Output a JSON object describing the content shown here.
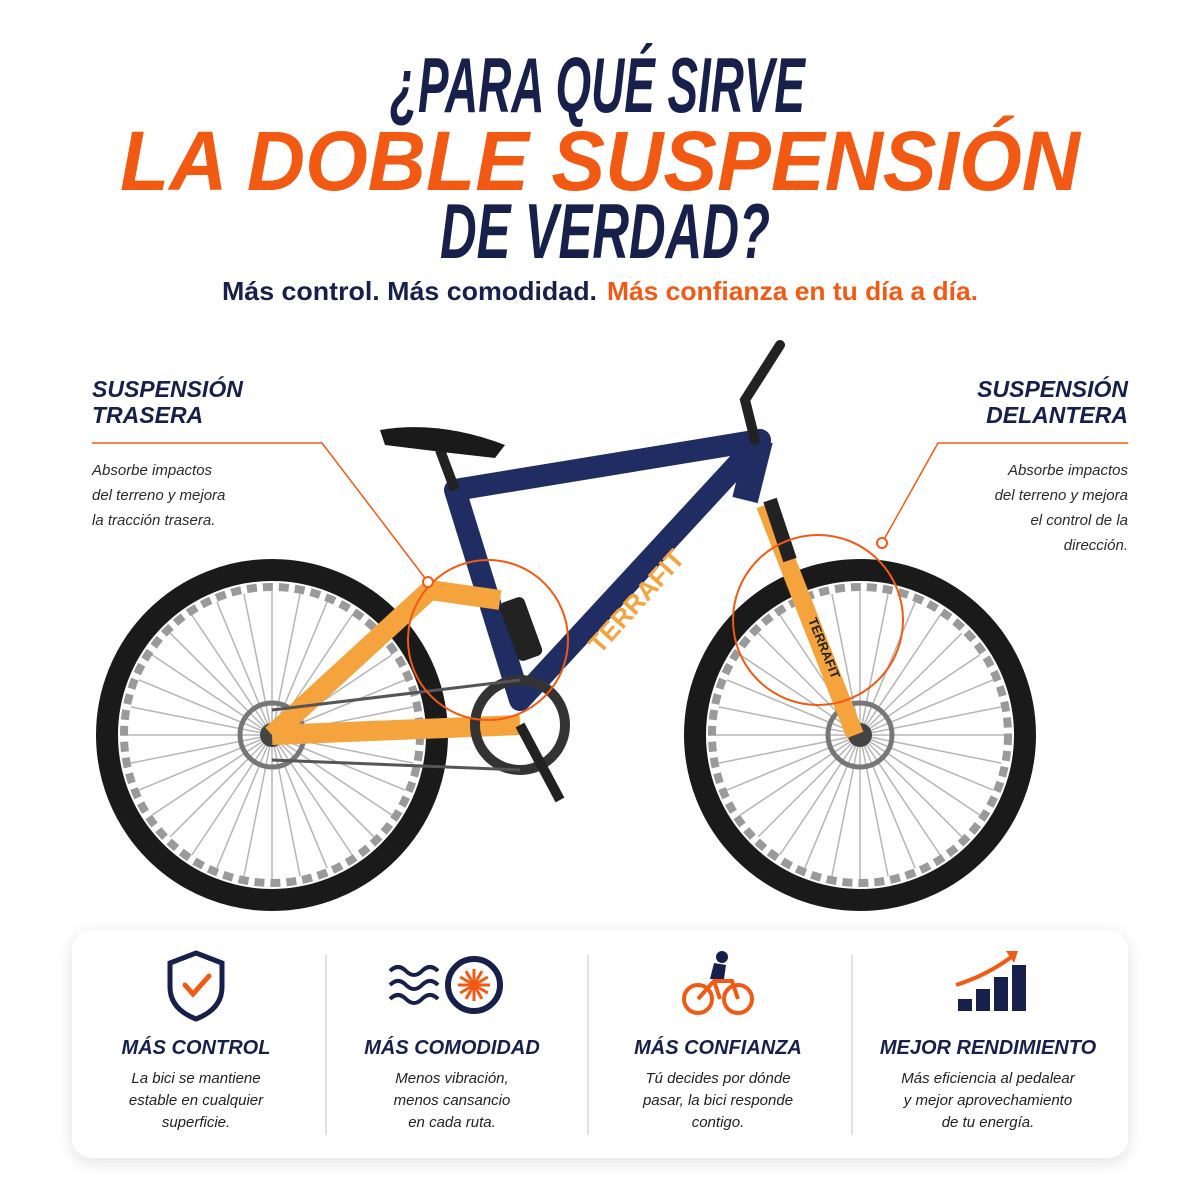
{
  "header": {
    "line1": "¿PARA QUÉ SIRVE",
    "line2": "LA DOBLE SUSPENSIÓN",
    "line3": "DE VERDAD?"
  },
  "subtitle": {
    "part1": "Más control. Más comodidad.",
    "part2": "Más confianza en tu día a día."
  },
  "callouts": [
    {
      "title": [
        "SUSPENSIÓN",
        "TRASERA"
      ],
      "text": [
        "Absorbe impactos",
        "del terreno y mejora",
        "la tracción trasera."
      ]
    },
    {
      "title": [
        "SUSPENSIÓN",
        "DELANTERA"
      ],
      "text": [
        "Absorbe impactos",
        "del terreno y mejora",
        "el control de la",
        "dirección."
      ]
    }
  ],
  "bike": {
    "brand": "TERRAFIT"
  },
  "features": [
    {
      "title": "MÁS CONTROL",
      "text": [
        "La bici se mantiene",
        "estable en cualquier",
        "superficie."
      ]
    },
    {
      "title": "MÁS COMODIDAD",
      "text": [
        "Menos vibración,",
        "menos cansancio",
        "en cada ruta."
      ]
    },
    {
      "title": "MÁS CONFIANZA",
      "text": [
        "Tú decides por dónde",
        "pasar, la bici responde",
        "contigo."
      ]
    },
    {
      "title": "MEJOR RENDIMIENTO",
      "text": [
        "Más eficiencia al pedalear",
        "y mejor aprovechamiento",
        "de tu energía."
      ]
    }
  ]
}
